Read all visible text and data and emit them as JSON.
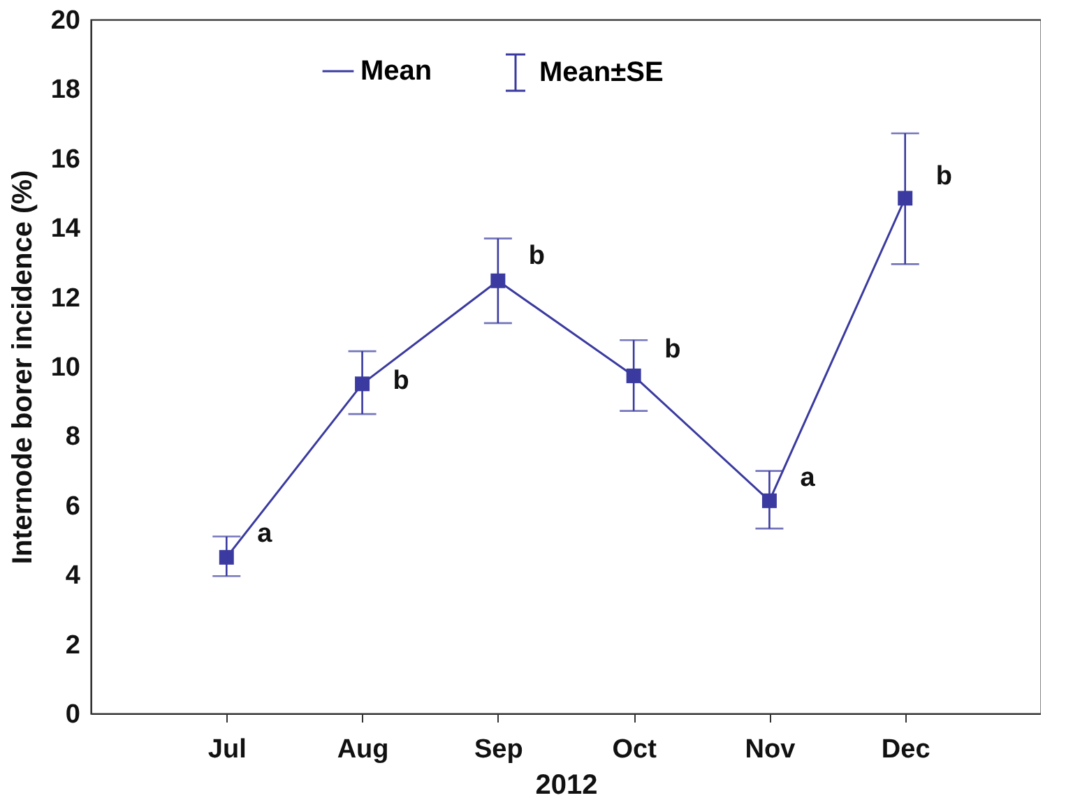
{
  "chart_data": {
    "type": "line",
    "xlabel": "2012",
    "ylabel": "Internode borer incidence (%)",
    "categories": [
      "Jul",
      "Aug",
      "Sep",
      "Oct",
      "Nov",
      "Dec"
    ],
    "series": [
      {
        "name": "Mean",
        "color": "#3a3aa0",
        "values": [
          4.5,
          9.5,
          12.47,
          9.73,
          6.13,
          14.85
        ],
        "errors": [
          [
            3.96,
            5.1
          ],
          [
            8.63,
            10.44
          ],
          [
            11.25,
            13.69
          ],
          [
            8.72,
            10.76
          ],
          [
            5.33,
            6.99
          ],
          [
            12.95,
            16.72
          ]
        ]
      }
    ],
    "annotations": [
      "Mean±SE",
      {
        "text": "a",
        "x": "Jul",
        "y": 5.2
      },
      {
        "text": "b",
        "x": "Aug",
        "y": 9.6
      },
      {
        "text": "b",
        "x": "Sep",
        "y": 13.2
      },
      {
        "text": "b",
        "x": "Oct",
        "y": 10.5
      },
      {
        "text": "a",
        "x": "Nov",
        "y": 6.8
      },
      {
        "text": "b",
        "x": "Dec",
        "y": 15.5
      }
    ],
    "ylim": [
      0,
      20
    ],
    "yticks": [
      0,
      2,
      4,
      6,
      8,
      10,
      12,
      14,
      16,
      18,
      20
    ],
    "grid": false,
    "legend": "top",
    "marker": "square",
    "line_style": "solid"
  }
}
